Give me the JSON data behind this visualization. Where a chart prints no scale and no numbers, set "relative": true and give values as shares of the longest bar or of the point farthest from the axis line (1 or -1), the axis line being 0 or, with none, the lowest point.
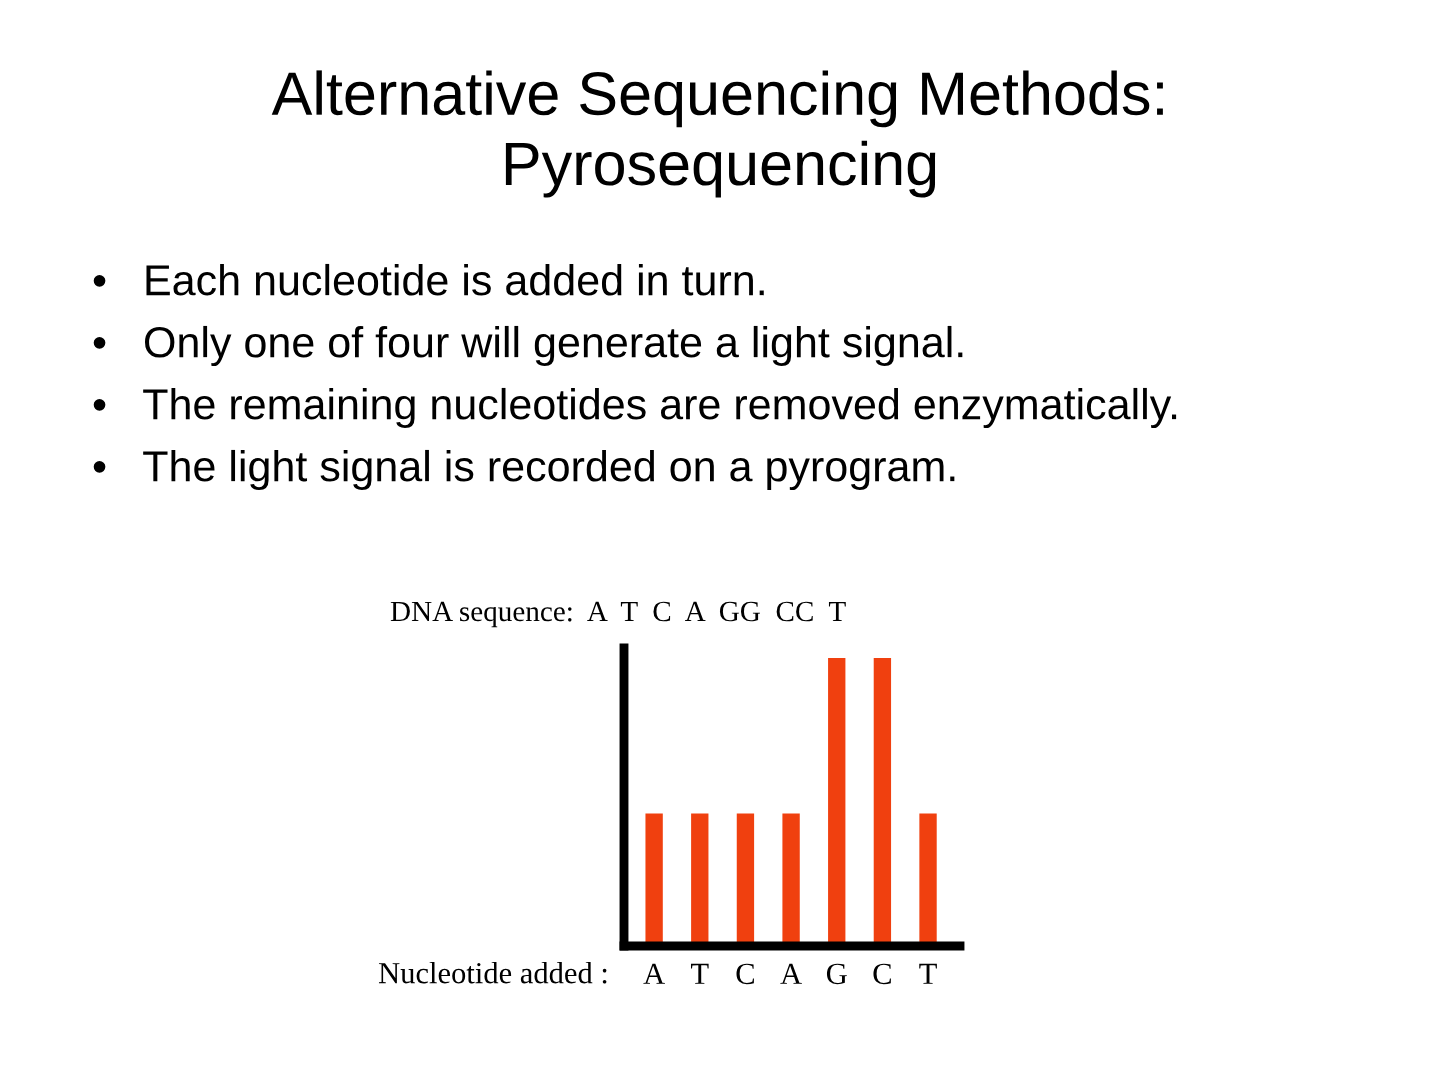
{
  "chart_data": {
    "type": "bar",
    "title": "Alternative Sequencing Methods:\nPyrosequencing",
    "annotations": [
      "•   Each nucleotide is added in turn.",
      "•   Only one of four will generate a light signal.",
      "•   The remaining nucleotides are removed enzymatically.",
      "•   The light signal is recorded on a pyrogram.",
      "DNA sequence:  A  T  C  A  GG  CC  T"
    ],
    "xlabel": "Nucleotide added :",
    "categories": [
      "A",
      "T",
      "C",
      "A",
      "G",
      "C",
      "T"
    ],
    "values": [
      0.46,
      0.46,
      0.46,
      0.46,
      1,
      1,
      0.46
    ],
    "color": "#f0400f",
    "relative": true
  }
}
